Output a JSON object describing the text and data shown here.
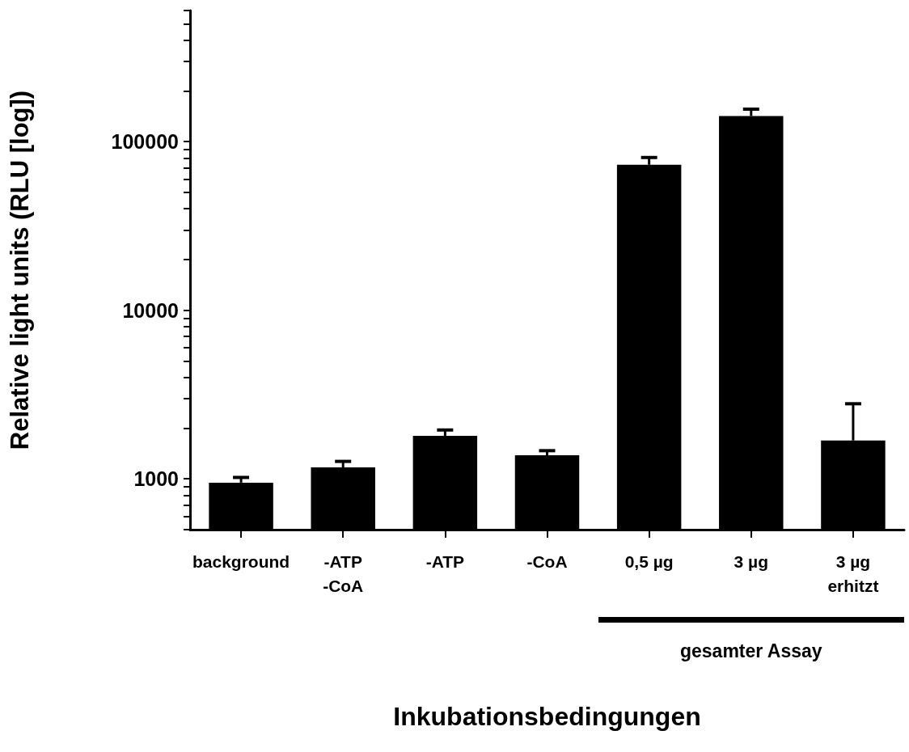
{
  "chart_data": {
    "type": "bar",
    "xlabel": "Inkubationsbedingungen",
    "ylabel": "Relative light units (RLU [log])",
    "categories": [
      "background",
      "-ATP\n-CoA",
      "-ATP",
      "-CoA",
      "0,5 µg",
      "3 µg",
      "3 µg\nerhitzt"
    ],
    "values": [
      950,
      1170,
      1800,
      1380,
      73000,
      142000,
      1690
    ],
    "errors": [
      [
        950,
        1020
      ],
      [
        1170,
        1270
      ],
      [
        1800,
        1950
      ],
      [
        1380,
        1470
      ],
      [
        73000,
        80600
      ],
      [
        142000,
        156000
      ],
      [
        1690,
        2790
      ]
    ],
    "color": "#000000",
    "log": true,
    "ylim": [
      500,
      600000
    ],
    "yticks": [
      {
        "value": 500,
        "label": null
      },
      {
        "value": 600,
        "label": null
      },
      {
        "value": 700,
        "label": null
      },
      {
        "value": 800,
        "label": null
      },
      {
        "value": 900,
        "label": null
      },
      1000,
      {
        "value": 2000,
        "label": null
      },
      {
        "value": 3000,
        "label": null
      },
      {
        "value": 4000,
        "label": null
      },
      {
        "value": 5000,
        "label": null
      },
      {
        "value": 6000,
        "label": null
      },
      {
        "value": 7000,
        "label": null
      },
      {
        "value": 8000,
        "label": null
      },
      {
        "value": 9000,
        "label": null
      },
      10000,
      {
        "value": 20000,
        "label": null
      },
      {
        "value": 30000,
        "label": null
      },
      {
        "value": 40000,
        "label": null
      },
      {
        "value": 50000,
        "label": null
      },
      {
        "value": 60000,
        "label": null
      },
      {
        "value": 70000,
        "label": null
      },
      {
        "value": 80000,
        "label": null
      },
      {
        "value": 90000,
        "label": null
      },
      100000,
      {
        "value": 200000,
        "label": null
      },
      {
        "value": 300000,
        "label": null
      },
      {
        "value": 400000,
        "label": null
      },
      {
        "value": 500000,
        "label": null
      },
      {
        "value": 600000,
        "label": null
      }
    ],
    "grid": false,
    "annotations": [
      "gesamter Assay"
    ]
  }
}
